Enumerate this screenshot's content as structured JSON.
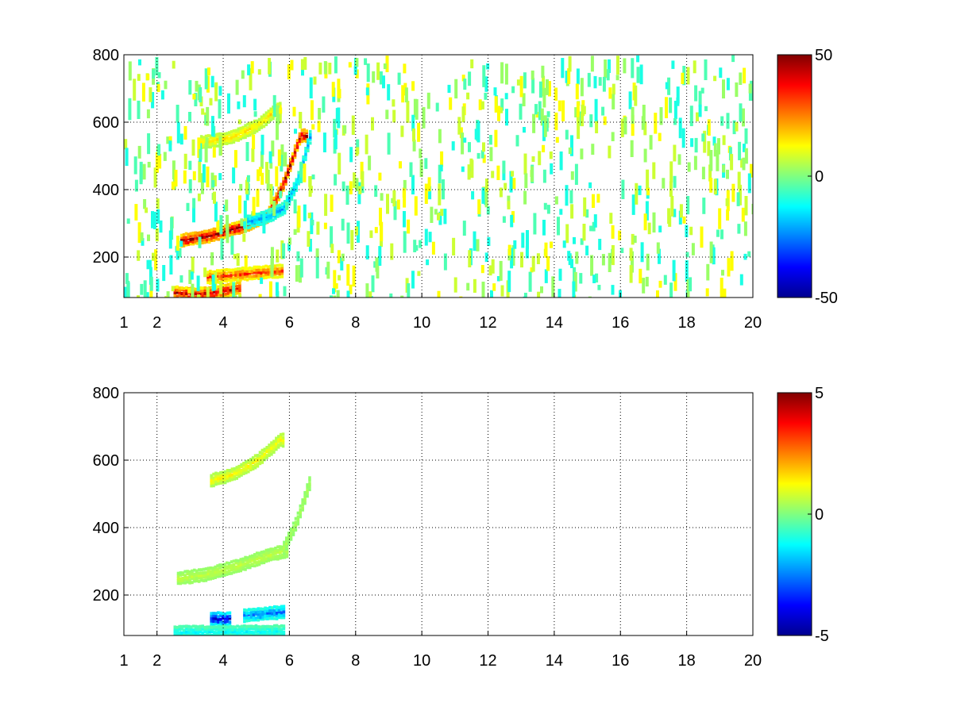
{
  "chart_data": [
    {
      "type": "heatmap",
      "title": "",
      "xlabel": "",
      "ylabel": "",
      "xlim": [
        1,
        20
      ],
      "ylim": [
        80,
        800
      ],
      "x_ticks": [
        1,
        2,
        4,
        6,
        8,
        10,
        12,
        14,
        16,
        18,
        20
      ],
      "y_ticks": [
        200,
        400,
        600,
        800
      ],
      "grid": true,
      "grid_style": "dotted",
      "colormap": "jet",
      "colorbar": {
        "range": [
          -50,
          50
        ],
        "ticks": [
          -50,
          0,
          50
        ]
      },
      "features": [
        {
          "x_range": [
            2.7,
            6.5
          ],
          "y_curve": [
            [
              2.7,
              250
            ],
            [
              3.5,
              262
            ],
            [
              4.5,
              290
            ],
            [
              5.3,
              320
            ],
            [
              5.8,
              420
            ],
            [
              6.3,
              560
            ]
          ],
          "value": 45
        },
        {
          "x_range": [
            4.7,
            6.6
          ],
          "y_curve": [
            [
              4.7,
              305
            ],
            [
              5.3,
              320
            ],
            [
              5.8,
              345
            ],
            [
              6.2,
              420
            ],
            [
              6.6,
              560
            ]
          ],
          "value": -20
        },
        {
          "x_range": [
            3.3,
            5.7
          ],
          "y_curve": [
            [
              3.3,
              540
            ],
            [
              4.2,
              555
            ],
            [
              5.0,
              590
            ],
            [
              5.6,
              640
            ]
          ],
          "value": 15
        },
        {
          "x_range": [
            2.5,
            4.5
          ],
          "y_curve": [
            [
              2.5,
              95
            ],
            [
              3.2,
              90
            ],
            [
              4.0,
              100
            ],
            [
              4.5,
              110
            ]
          ],
          "value": 40
        },
        {
          "x_range": [
            3.5,
            5.8
          ],
          "y_curve": [
            [
              3.5,
              140
            ],
            [
              4.5,
              150
            ],
            [
              5.8,
              160
            ]
          ],
          "value": 30
        }
      ]
    },
    {
      "type": "heatmap",
      "title": "",
      "xlabel": "",
      "ylabel": "",
      "xlim": [
        1,
        20
      ],
      "ylim": [
        80,
        800
      ],
      "x_ticks": [
        1,
        2,
        4,
        6,
        8,
        10,
        12,
        14,
        16,
        18,
        20
      ],
      "y_ticks": [
        200,
        400,
        600,
        800
      ],
      "grid": true,
      "grid_style": "dotted",
      "colormap": "jet",
      "colorbar": {
        "range": [
          -5,
          5
        ],
        "ticks": [
          -5,
          0,
          5
        ]
      },
      "features": [
        {
          "x_range": [
            2.6,
            5.9
          ],
          "y_curve": [
            [
              2.6,
              250
            ],
            [
              3.5,
              262
            ],
            [
              4.5,
              290
            ],
            [
              5.3,
              318
            ],
            [
              5.8,
              330
            ]
          ],
          "value": 0.6
        },
        {
          "x_range": [
            3.6,
            5.8
          ],
          "y_curve": [
            [
              3.6,
              540
            ],
            [
              4.3,
              560
            ],
            [
              5.0,
              600
            ],
            [
              5.7,
              660
            ]
          ],
          "value": 1.2
        },
        {
          "x_range": [
            5.8,
            6.6
          ],
          "y_curve": [
            [
              5.8,
              340
            ],
            [
              6.2,
              420
            ],
            [
              6.6,
              540
            ]
          ],
          "value": 0.4
        },
        {
          "x_range": [
            3.6,
            4.2
          ],
          "y_curve": [
            [
              3.6,
              130
            ],
            [
              4.2,
              130
            ]
          ],
          "value": -4.0
        },
        {
          "x_range": [
            4.6,
            5.8
          ],
          "y_curve": [
            [
              4.6,
              140
            ],
            [
              5.8,
              150
            ]
          ],
          "value": -2.5
        },
        {
          "x_range": [
            2.5,
            5.8
          ],
          "y_curve": [
            [
              2.5,
              90
            ],
            [
              5.8,
              92
            ]
          ],
          "value": -1.2
        }
      ]
    }
  ]
}
